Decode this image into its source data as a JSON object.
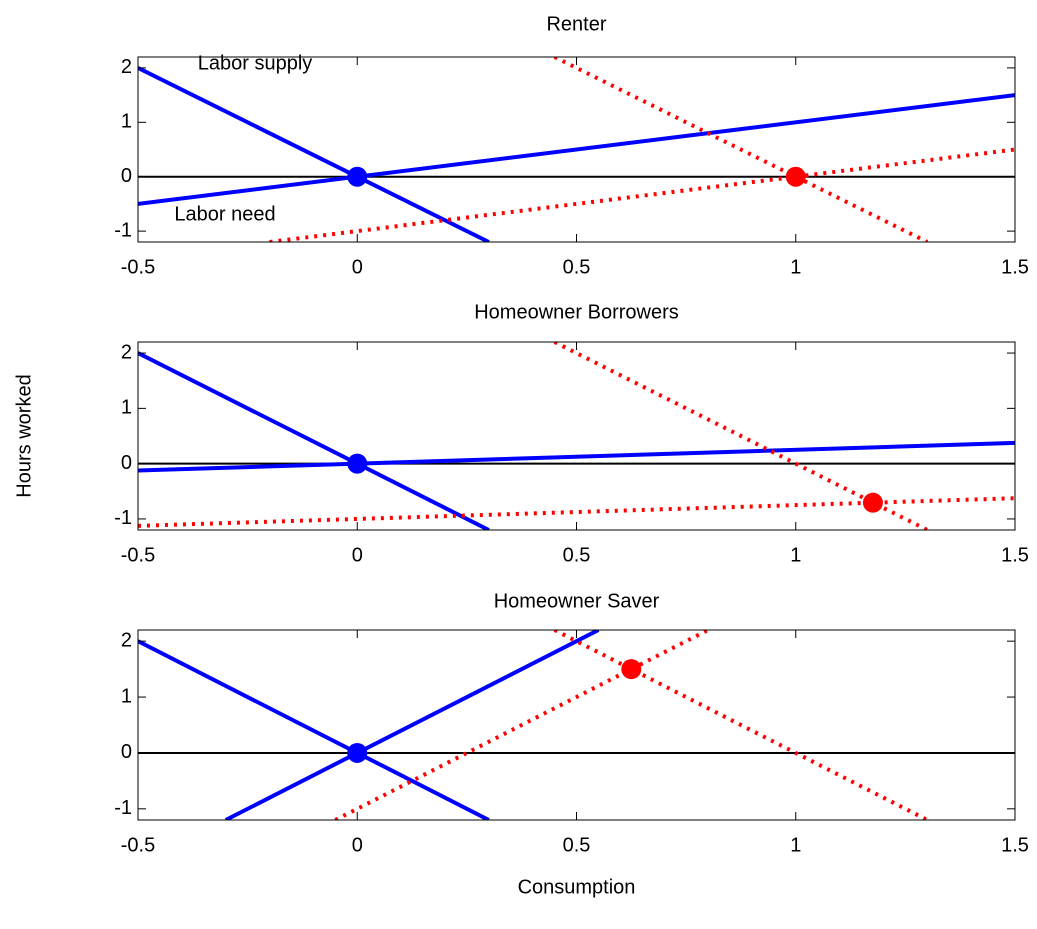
{
  "chart_data": [
    {
      "type": "line",
      "title": "Renter",
      "annotations": [
        "Labor supply",
        "Labor need"
      ],
      "xlim": [
        -0.5,
        1.5
      ],
      "xticks": [
        -0.5,
        0,
        0.5,
        1,
        1.5
      ],
      "ylim": [
        -1.2,
        2.2
      ],
      "yticks": [
        -1,
        0,
        1,
        2
      ],
      "series": [
        {
          "color": "#000000",
          "style": "solid",
          "x": [
            -0.5,
            1.5
          ],
          "values": [
            0,
            0
          ]
        },
        {
          "color": "#0000ff",
          "style": "solid",
          "x": [
            -0.5,
            0.3
          ],
          "values": [
            2,
            -1.2
          ]
        },
        {
          "color": "#0000ff",
          "style": "solid",
          "x": [
            -0.5,
            1.5
          ],
          "values": [
            -0.5,
            1.5
          ]
        },
        {
          "color": "#ff0000",
          "style": "dotted",
          "x": [
            0.45,
            1.3
          ],
          "values": [
            2.2,
            -1.2
          ]
        },
        {
          "color": "#ff0000",
          "style": "dotted",
          "x": [
            -0.2,
            1.5
          ],
          "values": [
            -1.2,
            0.5
          ]
        },
        {
          "color": "#0000ff",
          "style": "marker",
          "x": [
            0
          ],
          "values": [
            0
          ]
        },
        {
          "color": "#ff0000",
          "style": "marker",
          "x": [
            1
          ],
          "values": [
            0
          ]
        }
      ]
    },
    {
      "type": "line",
      "title": "Homeowner Borrowers",
      "ylabel": "Hours worked",
      "xlim": [
        -0.5,
        1.5
      ],
      "xticks": [
        -0.5,
        0,
        0.5,
        1,
        1.5
      ],
      "ylim": [
        -1.2,
        2.2
      ],
      "yticks": [
        -1,
        0,
        1,
        2
      ],
      "series": [
        {
          "color": "#000000",
          "style": "solid",
          "x": [
            -0.5,
            1.5
          ],
          "values": [
            0,
            0
          ]
        },
        {
          "color": "#0000ff",
          "style": "solid",
          "x": [
            -0.5,
            0.3
          ],
          "values": [
            2,
            -1.2
          ]
        },
        {
          "color": "#0000ff",
          "style": "solid",
          "x": [
            -0.5,
            1.5
          ],
          "values": [
            -0.125,
            0.375
          ]
        },
        {
          "color": "#ff0000",
          "style": "dotted",
          "x": [
            0.45,
            1.3
          ],
          "values": [
            2.2,
            -1.2
          ]
        },
        {
          "color": "#ff0000",
          "style": "dotted",
          "x": [
            -0.5,
            1.5
          ],
          "values": [
            -1.125,
            -0.625
          ]
        },
        {
          "color": "#0000ff",
          "style": "marker",
          "x": [
            0
          ],
          "values": [
            0
          ]
        },
        {
          "color": "#ff0000",
          "style": "marker",
          "x": [
            1.176
          ],
          "values": [
            -0.706
          ]
        }
      ]
    },
    {
      "type": "line",
      "title": "Homeowner Saver",
      "xlabel": "Consumption",
      "xlim": [
        -0.5,
        1.5
      ],
      "xticks": [
        -0.5,
        0,
        0.5,
        1,
        1.5
      ],
      "ylim": [
        -1.2,
        2.2
      ],
      "yticks": [
        -1,
        0,
        1,
        2
      ],
      "series": [
        {
          "color": "#000000",
          "style": "solid",
          "x": [
            -0.5,
            1.5
          ],
          "values": [
            0,
            0
          ]
        },
        {
          "color": "#0000ff",
          "style": "solid",
          "x": [
            -0.5,
            0.3
          ],
          "values": [
            2,
            -1.2
          ]
        },
        {
          "color": "#0000ff",
          "style": "solid",
          "x": [
            -0.3,
            0.55
          ],
          "values": [
            -1.2,
            2.2
          ]
        },
        {
          "color": "#ff0000",
          "style": "dotted",
          "x": [
            0.45,
            1.3
          ],
          "values": [
            2.2,
            -1.2
          ]
        },
        {
          "color": "#ff0000",
          "style": "dotted",
          "x": [
            -0.05,
            0.8
          ],
          "values": [
            -1.2,
            2.2
          ]
        },
        {
          "color": "#0000ff",
          "style": "marker",
          "x": [
            0
          ],
          "values": [
            0
          ]
        },
        {
          "color": "#ff0000",
          "style": "marker",
          "x": [
            0.625
          ],
          "values": [
            1.5
          ]
        }
      ]
    }
  ]
}
